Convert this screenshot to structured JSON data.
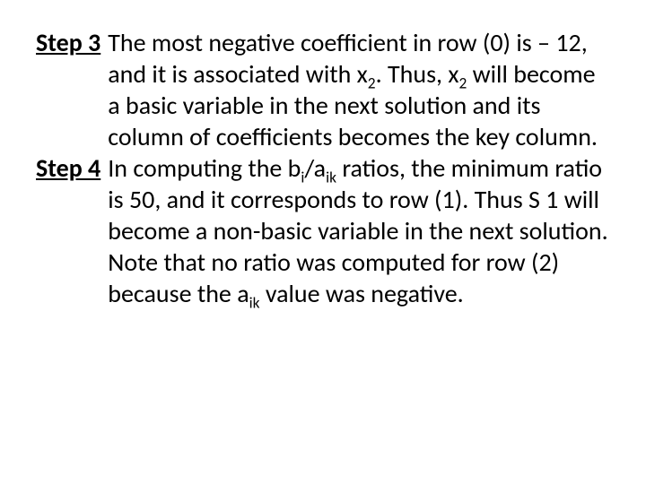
{
  "text_color": "#000000",
  "background_color": "#ffffff",
  "font_family": "Calibri",
  "base_fontsize": 28,
  "step3": {
    "label": "Step 3",
    "body_parts": {
      "p1a": "The most negative coefficient in row (0) is – 12, and it is associated with x",
      "p1sub1": "2",
      "p1b": ". Thus, x",
      "p1sub2": "2",
      "p1c": " will become a basic variable in the next solution and its column of coefficients becomes the key column."
    }
  },
  "step4": {
    "label": "Step 4",
    "body_parts": {
      "p1a": "In computing the b",
      "p1sub1": "i",
      "p1b": "/a",
      "p1sub2": "ik",
      "p1c": " ratios, the minimum ratio is 50, and it corresponds to row (1). Thus S 1 will become a non-basic variable in the next solution.",
      "p2a": "Note that no ratio was computed for row (2) because the a",
      "p2sub1": "ik",
      "p2b": " value was negative."
    }
  }
}
